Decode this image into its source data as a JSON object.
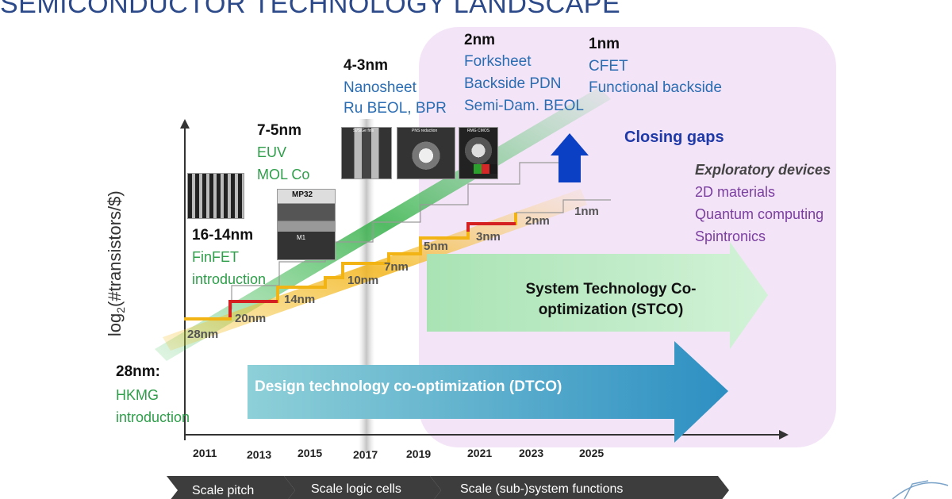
{
  "title": "SEMICONDUCTOR TECHNOLOGY LANDSCAPE",
  "y_axis_label": "log",
  "y_axis_sub": "2",
  "y_axis_suffix": "(#transistors/$)",
  "nodes": [
    {
      "heading": "28nm:",
      "lines": [
        "HKMG",
        "introduction"
      ]
    },
    {
      "heading": "16-14nm",
      "lines": [
        "FinFET",
        "introduction"
      ]
    },
    {
      "heading": "7-5nm",
      "lines": [
        "EUV",
        "MOL Co"
      ]
    },
    {
      "heading": "4-3nm",
      "lines": [
        "Nanosheet",
        "Ru BEOL, BPR"
      ]
    },
    {
      "heading": "2nm",
      "lines": [
        "Forksheet",
        "Backside PDN",
        "Semi-Dam. BEOL"
      ]
    },
    {
      "heading": "1nm",
      "lines": [
        "CFET",
        "Functional backside"
      ]
    }
  ],
  "closing_gaps": "Closing gaps",
  "exploratory": {
    "heading": "Exploratory devices",
    "items": [
      "2D materials",
      "Quantum computing",
      "Spintronics"
    ]
  },
  "staircase_labels": [
    "28nm",
    "20nm",
    "14nm",
    "10nm",
    "7nm",
    "5nm",
    "3nm",
    "2nm",
    "1nm"
  ],
  "years": [
    "2011",
    "2013",
    "2015",
    "2017",
    "2019",
    "2021",
    "2023",
    "2025"
  ],
  "stco": {
    "line1": "System Technology Co-",
    "line2": "optimization (STCO)"
  },
  "dtco": "Design technology co-optimization (DTCO)",
  "phases": [
    "Scale pitch",
    "Scale logic cells",
    "Scale (sub-)system functions"
  ],
  "image_labels": {
    "mp32": "MP32",
    "ni": "M1",
    "inset1": "Si/SiGe fins",
    "inset2": "PNS reduction",
    "inset3": "RMG CMOS"
  },
  "colors": {
    "title": "#2c4a8a",
    "node_green": "#2e9e4a",
    "node_blue": "#2a6db3",
    "exploratory_purple": "#7a3ea0",
    "closing_gaps": "#1f3aa8",
    "pink_region": "#f4e4f7",
    "stco_arrow": "#b7e8c0",
    "dtco_arrow": "#3a9bbf",
    "up_arrow": "#0b3fc4"
  }
}
